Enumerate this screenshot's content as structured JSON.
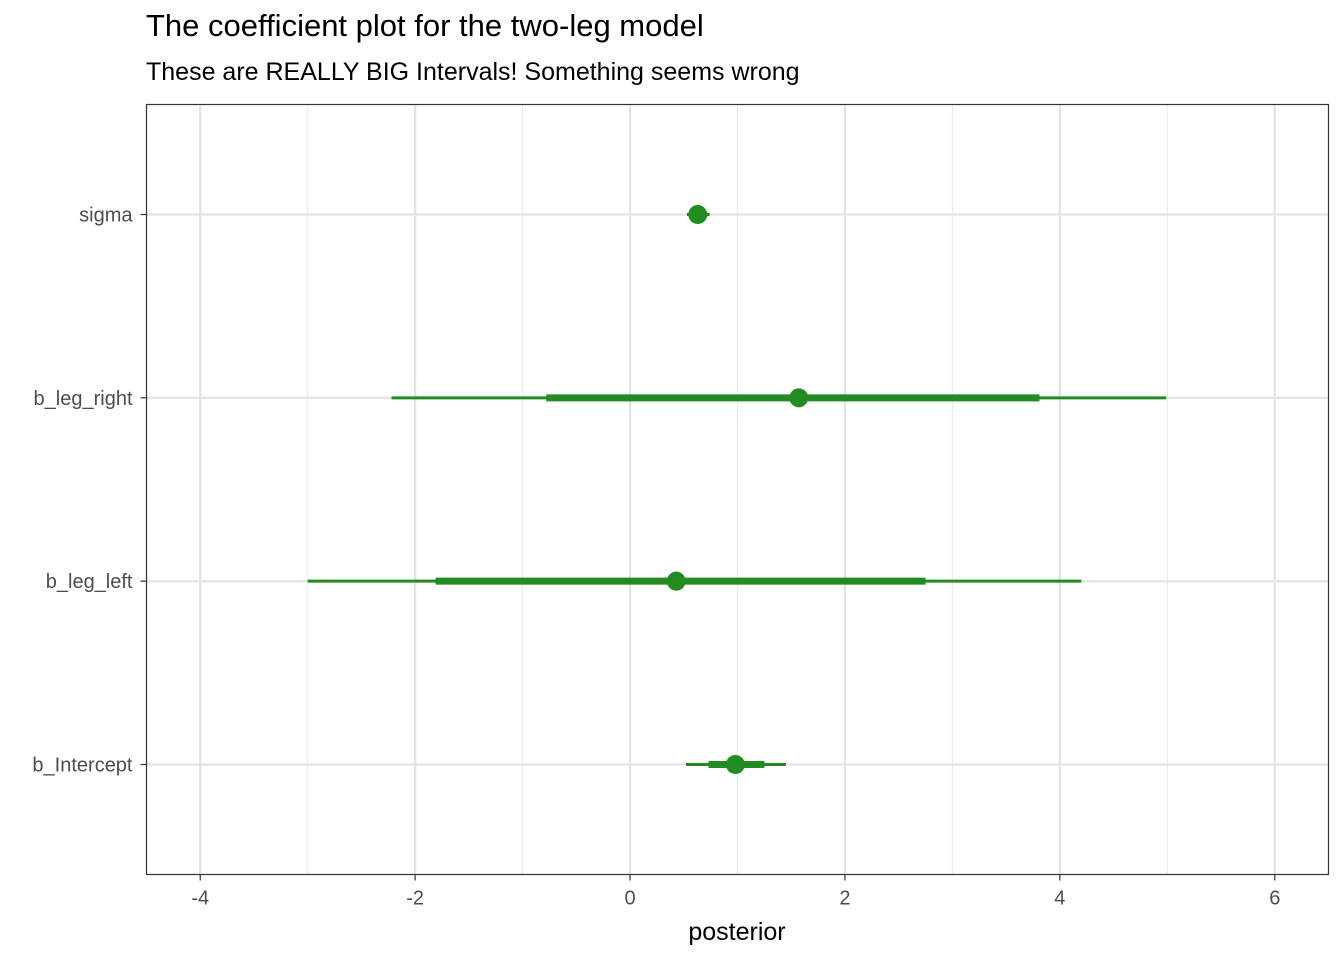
{
  "chart_data": {
    "type": "scatter",
    "title": "The coefficient plot for the two-leg model",
    "subtitle": "These are REALLY BIG Intervals! Something seems wrong",
    "xlabel": "posterior",
    "ylabel": "",
    "xlim": [
      -4.5,
      6.5
    ],
    "xticks": [
      -4,
      -2,
      0,
      2,
      4,
      6
    ],
    "grid": true,
    "color": "#228B22",
    "parameters": [
      {
        "name": "sigma",
        "estimate": 0.63,
        "inner": [
          0.58,
          0.69
        ],
        "outer": [
          0.53,
          0.74
        ]
      },
      {
        "name": "b_leg_right",
        "estimate": 1.57,
        "inner": [
          -0.78,
          3.81
        ],
        "outer": [
          -2.22,
          4.99
        ]
      },
      {
        "name": "b_leg_left",
        "estimate": 0.43,
        "inner": [
          -1.81,
          2.75
        ],
        "outer": [
          -3.0,
          4.2
        ]
      },
      {
        "name": "b_Intercept",
        "estimate": 0.98,
        "inner": [
          0.73,
          1.25
        ],
        "outer": [
          0.52,
          1.45
        ]
      }
    ]
  }
}
